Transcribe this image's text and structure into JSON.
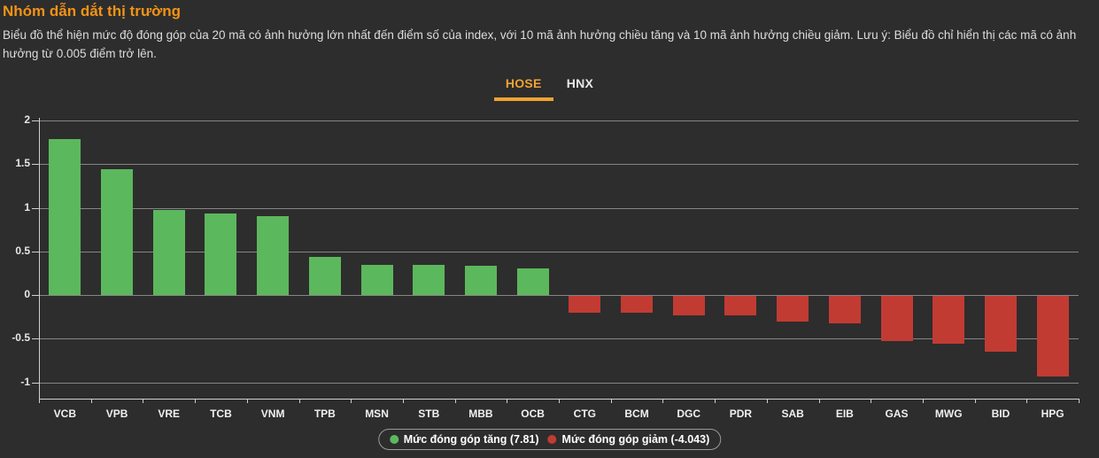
{
  "header": {
    "title": "Nhóm dẫn dắt thị trường",
    "description": "Biểu đồ thể hiện mức độ đóng góp của 20 mã có ảnh hưởng lớn nhất đến điểm số của index, với 10 mã ảnh hưởng chiều tăng và 10 mã ảnh hưởng chiều giảm. Lưu ý: Biểu đồ chỉ hiển thị các mã có ảnh hưởng từ 0.005 điểm trở lên."
  },
  "tabs": [
    {
      "label": "HOSE",
      "active": true
    },
    {
      "label": "HNX",
      "active": false
    }
  ],
  "colors": {
    "background": "#2d2d2d",
    "title": "#f39315",
    "accent": "#f0a330",
    "positive": "#5cb85c",
    "negative": "#c13b33"
  },
  "chart_data": {
    "type": "bar",
    "title": "Nhóm dẫn dắt thị trường",
    "categories": [
      "VCB",
      "VPB",
      "VRE",
      "TCB",
      "VNM",
      "TPB",
      "MSN",
      "STB",
      "MBB",
      "OCB",
      "CTG",
      "BCM",
      "DGC",
      "PDR",
      "SAB",
      "EIB",
      "GAS",
      "MWG",
      "BID",
      "HPG"
    ],
    "values": [
      1.79,
      1.44,
      0.97,
      0.93,
      0.9,
      0.44,
      0.35,
      0.35,
      0.34,
      0.3,
      -0.19,
      -0.19,
      -0.22,
      -0.22,
      -0.29,
      -0.31,
      -0.52,
      -0.55,
      -0.64,
      -0.92
    ],
    "xlabel": "",
    "ylabel": "",
    "yticks": [
      2,
      1.5,
      1,
      0.5,
      0,
      -0.5,
      -1
    ],
    "ylim": [
      -1.2,
      2
    ],
    "grid": true,
    "legend_position": "bottom",
    "legend": [
      {
        "label": "Mức đóng góp tăng (7.81)",
        "color": "#5cb85c"
      },
      {
        "label": "Mức đóng góp giảm (-4.043)",
        "color": "#c13b33"
      }
    ],
    "positive_total": "7.81",
    "negative_total": "-4.043"
  }
}
